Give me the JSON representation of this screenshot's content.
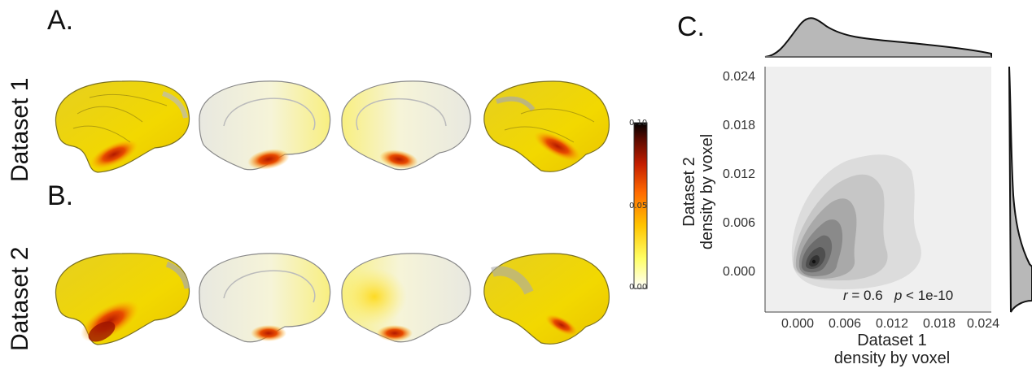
{
  "panels": {
    "a_label": "A.",
    "b_label": "B.",
    "c_label": "C."
  },
  "rows": {
    "dataset1": "Dataset 1",
    "dataset2": "Dataset 2"
  },
  "colorbar": {
    "max": "0.10",
    "mid": "0.05",
    "min": "0.00",
    "colors": [
      "#ffffff",
      "#ffff66",
      "#ffc400",
      "#ff6a00",
      "#c41e00",
      "#5a0a00",
      "#000000"
    ]
  },
  "chart_data": {
    "type": "kde2d",
    "xlabel_line1": "Dataset 1",
    "xlabel_line2": "density by voxel",
    "ylabel_line1": "Dataset 2",
    "ylabel_line2": "density by voxel",
    "xticks": [
      "0.000",
      "0.006",
      "0.012",
      "0.018",
      "0.024"
    ],
    "yticks": [
      "0.024",
      "0.018",
      "0.012",
      "0.006",
      "0.000"
    ],
    "xlim": [
      -0.0035,
      0.0255
    ],
    "ylim": [
      -0.0025,
      0.0245
    ],
    "peak": {
      "x": 0.0015,
      "y": 0.0015
    },
    "stat_r_label": "r",
    "stat_r_value": " = 0.6",
    "stat_p_label": "p",
    "stat_p_value": " < 1e-10",
    "contour_levels": 7,
    "marginal_x": "right-skewed density peaking near 0.002",
    "marginal_y": "right-skewed density peaking near 0.002"
  }
}
